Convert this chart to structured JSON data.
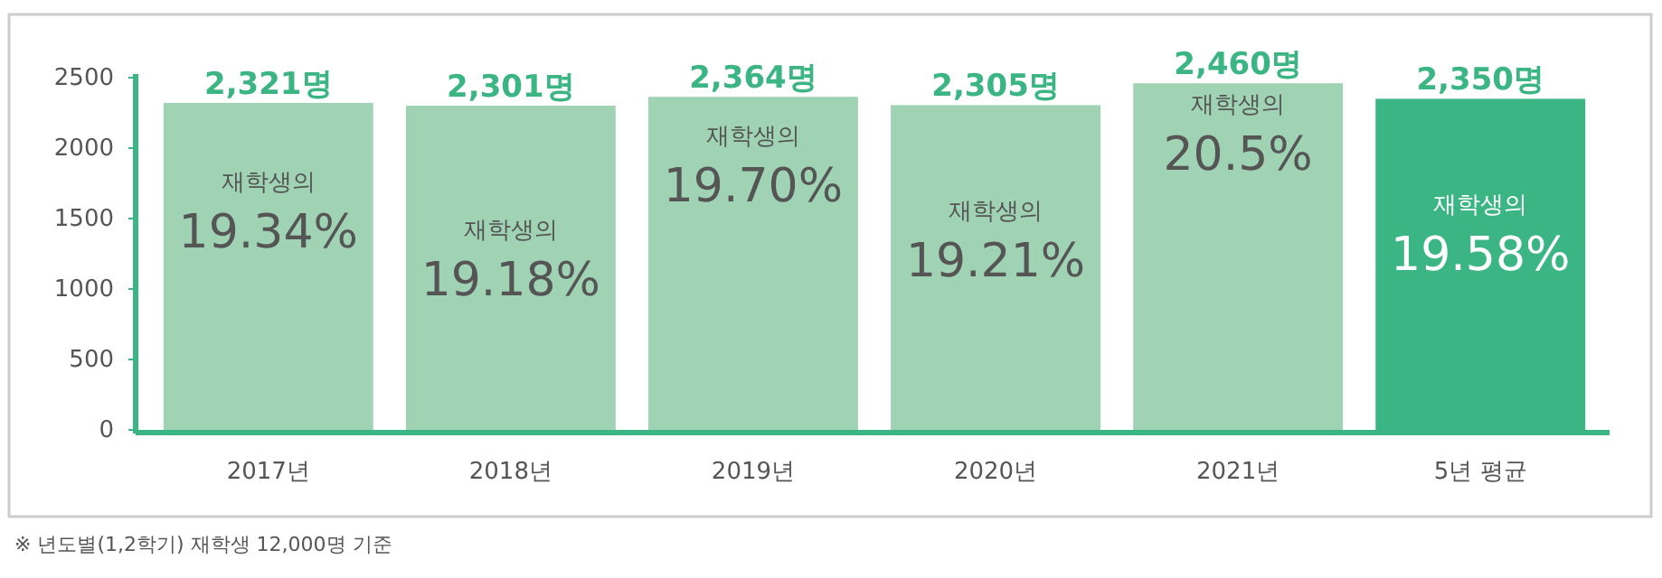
{
  "chart_data": {
    "type": "bar",
    "categories": [
      "2017년",
      "2018년",
      "2019년",
      "2020년",
      "2021년",
      "5년 평균"
    ],
    "values": [
      2321,
      2301,
      2364,
      2305,
      2460,
      2350
    ],
    "colors": [
      "#9fd3b4",
      "#9fd3b4",
      "#9fd3b4",
      "#9fd3b4",
      "#9fd3b4",
      "#3cb585"
    ],
    "value_labels": [
      "2,321명",
      "2,301명",
      "2,364명",
      "2,305명",
      "2,460명",
      "2,350명"
    ],
    "ylim": [
      0,
      2500
    ],
    "yticks": [
      0,
      500,
      1000,
      1500,
      2000,
      2500
    ],
    "grid": false,
    "annotations": [
      "재학생의\n19.34%",
      "재학생의\n19.18%",
      "재학생의\n19.70%",
      "재학생의\n19.21%",
      "재학생의\n20.5%",
      "재학생의\n19.58%",
      "※ 년도별(1,2학기) 재학생 12,000명 기준"
    ]
  }
}
